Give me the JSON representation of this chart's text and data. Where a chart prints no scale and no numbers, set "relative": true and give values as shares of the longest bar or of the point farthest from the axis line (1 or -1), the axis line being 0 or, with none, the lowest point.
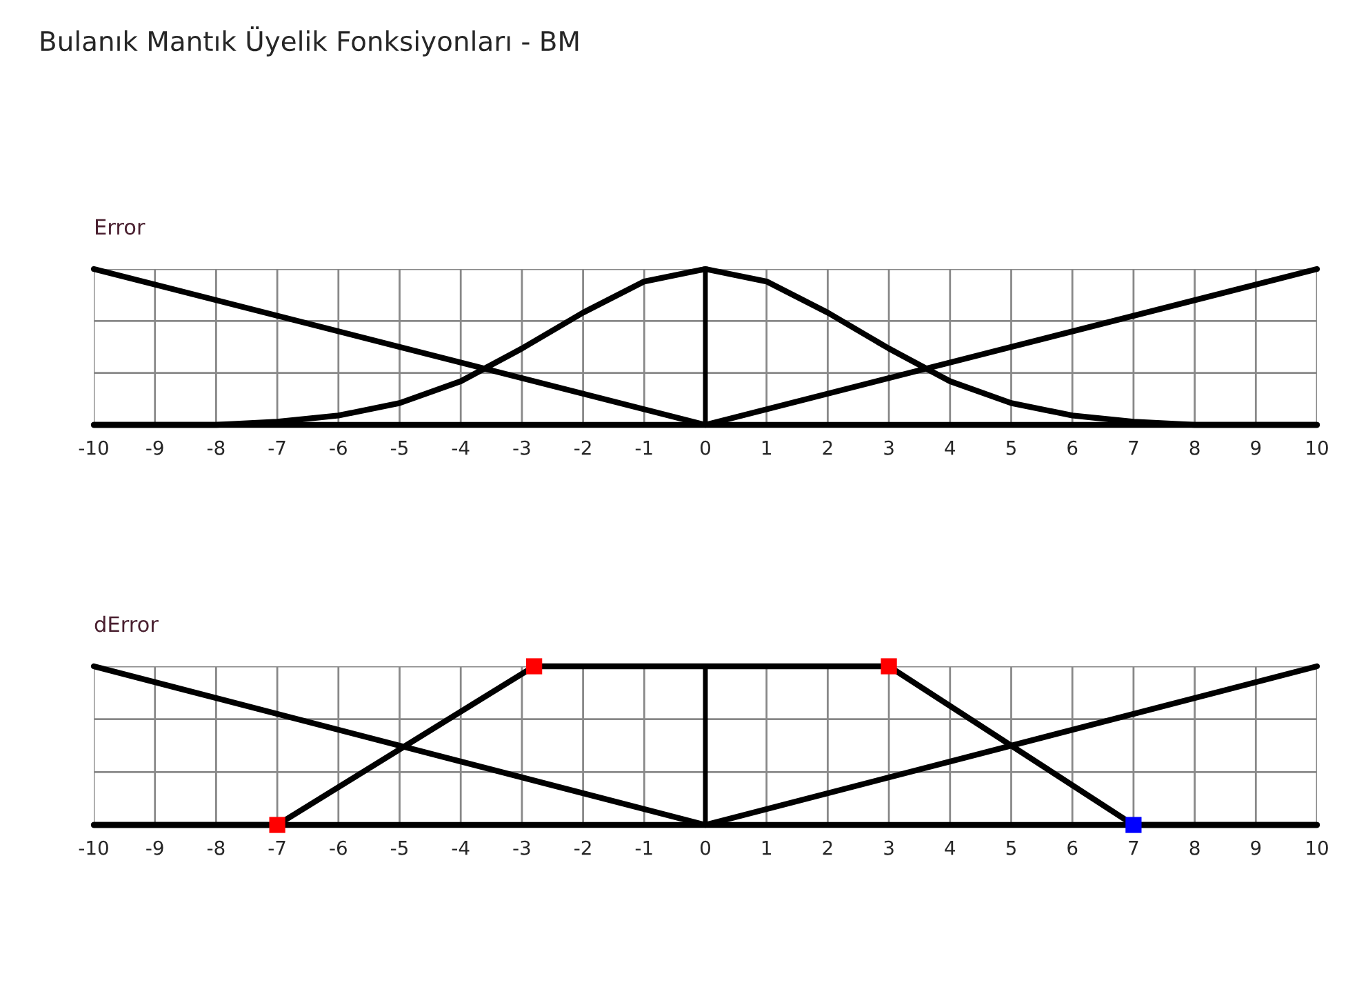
{
  "chart_data": [
    {
      "type": "line",
      "title": "Error",
      "annotations": [
        "Bulanık Mantık Üyelik Fonksiyonları - BM"
      ],
      "relative": true,
      "xlim": [
        -10,
        10
      ],
      "xticks": [
        -10,
        -9,
        -8,
        -7,
        -6,
        -5,
        -4,
        -3,
        -2,
        -1,
        0,
        1,
        2,
        3,
        4,
        5,
        6,
        7,
        8,
        9,
        10
      ],
      "grid": true,
      "marker": "none",
      "line_style": "solid",
      "series": [
        {
          "color": "#000000",
          "x": [
            -10,
            0,
            10
          ],
          "values": [
            1,
            0,
            0
          ]
        },
        {
          "color": "#000000",
          "x": [
            -10,
            0,
            10
          ],
          "values": [
            0,
            0,
            1
          ]
        },
        {
          "color": "#000000",
          "x": [
            -10,
            -9,
            -8,
            -7,
            -6,
            -5,
            -4,
            -3,
            -2,
            -1,
            0,
            1,
            2,
            3,
            4,
            5,
            6,
            7,
            8,
            9,
            10
          ],
          "values": [
            0,
            0,
            0,
            0.02,
            0.06,
            0.14,
            0.28,
            0.49,
            0.72,
            0.92,
            1,
            0.92,
            0.72,
            0.49,
            0.28,
            0.14,
            0.06,
            0.02,
            0,
            0,
            0
          ]
        }
      ]
    },
    {
      "type": "line",
      "title": "dError",
      "relative": true,
      "xlim": [
        -10,
        10
      ],
      "xticks": [
        -10,
        -9,
        -8,
        -7,
        -6,
        -5,
        -4,
        -3,
        -2,
        -1,
        0,
        1,
        2,
        3,
        4,
        5,
        6,
        7,
        8,
        9,
        10
      ],
      "grid": true,
      "marker": "none",
      "line_style": "solid",
      "series": [
        {
          "color": "#000000",
          "x": [
            -10,
            0,
            10
          ],
          "values": [
            1,
            0,
            0
          ]
        },
        {
          "color": "#000000",
          "x": [
            -10,
            0,
            10
          ],
          "values": [
            0,
            0,
            1
          ]
        },
        {
          "color": "#000000",
          "x": [
            -10,
            -7,
            -2.8,
            3,
            7,
            10
          ],
          "values": [
            0,
            0,
            1,
            1,
            0,
            0
          ]
        },
        {
          "type": "scatter",
          "marker": "square",
          "x": [
            -7,
            -2.8,
            3,
            7
          ],
          "values": [
            0,
            1,
            1,
            0
          ],
          "colors": [
            "#ff0000",
            "#ff0000",
            "#ff0000",
            "#0000ff"
          ]
        }
      ]
    }
  ]
}
